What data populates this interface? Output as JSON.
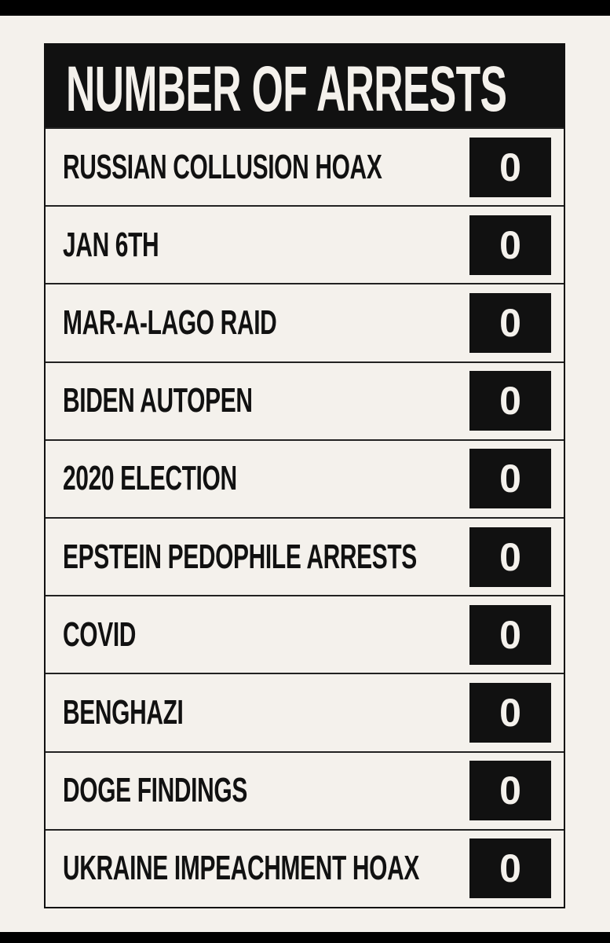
{
  "title": "NUMBER OF ARRESTS",
  "rows": [
    {
      "label": "RUSSIAN COLLUSION HOAX",
      "value": 0
    },
    {
      "label": "JAN 6TH",
      "value": 0
    },
    {
      "label": "MAR-A-LAGO RAID",
      "value": 0
    },
    {
      "label": "BIDEN AUTOPEN",
      "value": 0
    },
    {
      "label": "2020 ELECTION",
      "value": 0
    },
    {
      "label": "EPSTEIN PEDOPHILE ARRESTS",
      "value": 0
    },
    {
      "label": "COVID",
      "value": 0
    },
    {
      "label": "BENGHAZI",
      "value": 0
    },
    {
      "label": "DOGE FINDINGS",
      "value": 0
    },
    {
      "label": "UKRAINE IMPEACHMENT HOAX",
      "value": 0
    }
  ]
}
